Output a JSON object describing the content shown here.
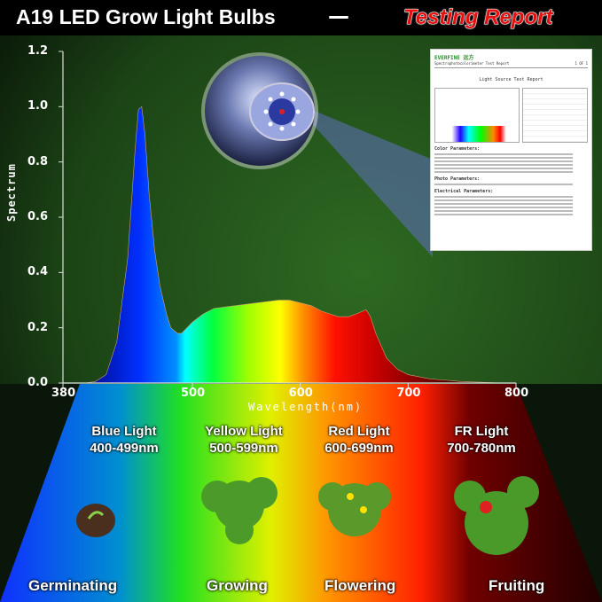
{
  "header": {
    "title": "A19 LED Grow Light Bulbs",
    "separator": "—",
    "report_label": "Testing Report"
  },
  "chart_data": {
    "type": "area",
    "title": "",
    "xlabel": "Wavelength(nm)",
    "ylabel": "Spectrum",
    "xlim": [
      380,
      800
    ],
    "ylim": [
      0,
      1.2
    ],
    "xticks": [
      380,
      500,
      600,
      700,
      800
    ],
    "yticks": [
      "0.0",
      "0.2",
      "0.4",
      "0.6",
      "0.8",
      "1.0",
      "1.2"
    ],
    "grid": false,
    "fill": "rainbow by wavelength",
    "x": [
      400,
      410,
      420,
      430,
      440,
      447,
      450,
      453,
      456,
      460,
      465,
      470,
      476,
      480,
      486,
      490,
      495,
      500,
      510,
      520,
      540,
      560,
      580,
      590,
      600,
      610,
      620,
      635,
      645,
      655,
      661,
      665,
      670,
      680,
      690,
      700,
      720,
      750,
      780,
      800
    ],
    "y": [
      0,
      0.005,
      0.03,
      0.15,
      0.45,
      0.85,
      0.99,
      1.0,
      0.9,
      0.68,
      0.48,
      0.35,
      0.25,
      0.2,
      0.18,
      0.18,
      0.2,
      0.22,
      0.25,
      0.27,
      0.28,
      0.29,
      0.3,
      0.3,
      0.29,
      0.28,
      0.26,
      0.24,
      0.24,
      0.255,
      0.265,
      0.24,
      0.18,
      0.09,
      0.05,
      0.03,
      0.015,
      0.005,
      0.001,
      0
    ]
  },
  "report": {
    "brand": "EVERFINE 远方",
    "header": "Spectrophotocolorimeter Test Report",
    "page": "1 OF 1",
    "title": "Light Source Test Report",
    "sections": [
      "Color Parameters:",
      "Photo Parameters:",
      "Electrical Parameters:"
    ]
  },
  "bands": [
    {
      "name": "Blue Light",
      "range": "400-499nm",
      "stage": "Germinating",
      "color": "#1040ff"
    },
    {
      "name": "Yellow Light",
      "range": "500-599nm",
      "stage": "Growing",
      "color": "#f0e000"
    },
    {
      "name": "Red Light",
      "range": "600-699nm",
      "stage": "Flowering",
      "color": "#ff3000"
    },
    {
      "name": "FR Light",
      "range": "700-780nm",
      "stage": "Fruiting",
      "color": "#6a0000"
    }
  ],
  "colors": {
    "background": "#1f4d1a",
    "accent_red": "#e41010"
  }
}
